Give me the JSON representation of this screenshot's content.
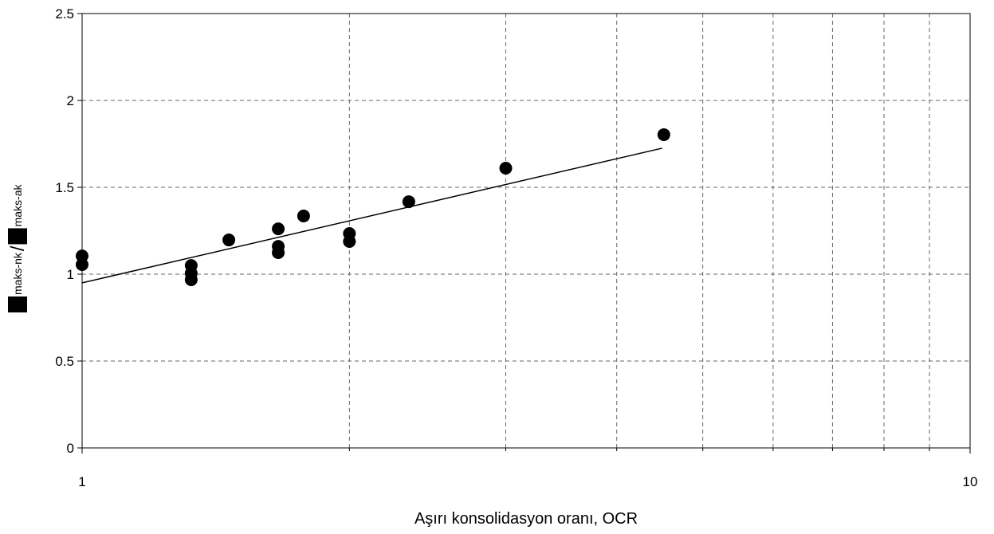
{
  "chart_data": {
    "type": "scatter",
    "xlabel": "Aşırı konsolidasyon oranı, OCR",
    "ylabel": [
      "maks-nk",
      "/",
      "maks-ak"
    ],
    "xscale": "log",
    "xlim": [
      1,
      10
    ],
    "xticks": [
      1,
      10
    ],
    "xgrid_minor": [
      2,
      3,
      4,
      5,
      6,
      7,
      8,
      9
    ],
    "ylim": [
      0,
      2.5
    ],
    "yticks": [
      0,
      0.5,
      1,
      1.5,
      2,
      2.5
    ],
    "grid": true,
    "series": [
      {
        "type": "scatter",
        "color": "#000000",
        "x": [
          1,
          1,
          1.327,
          1.327,
          1.327,
          1.463,
          1.663,
          1.663,
          1.663,
          1.776,
          2,
          2,
          2.333,
          3,
          4.52
        ],
        "values": [
          1.105,
          1.055,
          1.05,
          1.005,
          0.968,
          1.197,
          1.261,
          1.16,
          1.124,
          1.335,
          1.234,
          1.188,
          1.417,
          1.61,
          1.803
        ]
      },
      {
        "type": "line",
        "color": "#000000",
        "x": [
          1,
          4.5
        ],
        "values": [
          0.95,
          1.725
        ]
      }
    ]
  }
}
